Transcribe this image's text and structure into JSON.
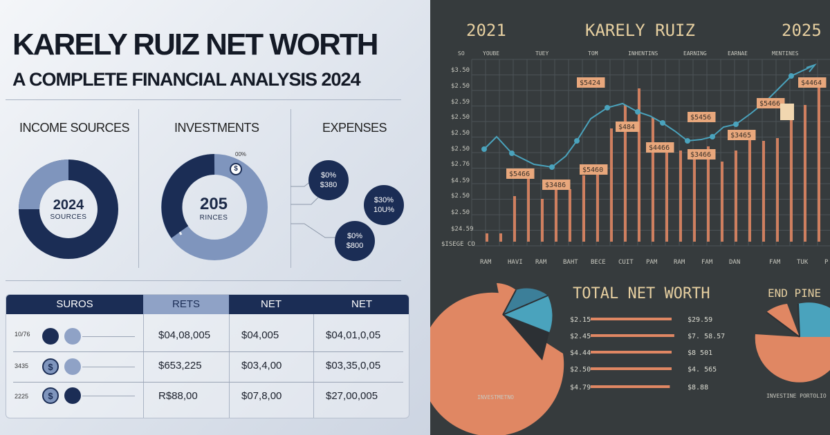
{
  "header": {
    "title": "KARELY RUIZ NET WORTH",
    "subtitle": "A COMPLETE FINANCIAL ANALYSIS 2024"
  },
  "sections": {
    "income": {
      "title": "INCOME SOURCES",
      "center_value": "2024",
      "center_label": "SOURCES"
    },
    "investments": {
      "title": "INVESTMENTS",
      "center_value": "205",
      "center_label": "RINCES",
      "pct_label": "00%",
      "badge_icon": "dollar-icon"
    },
    "expenses": {
      "title": "EXPENSES",
      "bubbles": [
        {
          "line1": "$0%",
          "line2": "$380"
        },
        {
          "line1": "$30%",
          "line2": "10U%"
        },
        {
          "line1": "$0%",
          "line2": "$800"
        }
      ]
    }
  },
  "table": {
    "headers": [
      "SUROS",
      "RETS",
      "NET",
      "NET"
    ],
    "rows": [
      {
        "label": "10/76",
        "icons": [
          "dark-dot",
          "light-dot"
        ],
        "cells": [
          "$04,08,005",
          "$04,005",
          "$04,01,0,05"
        ]
      },
      {
        "label": "3435",
        "icons": [
          "dollar-coin",
          "light-dot"
        ],
        "cells": [
          "$653,225",
          "$03,4,00",
          "$03,35,0,05"
        ]
      },
      {
        "label": "2225",
        "icons": [
          "dollar-coin",
          "dark-dot"
        ],
        "cells": [
          "R$88,00",
          "$07,8,00",
          "$27,00,005"
        ]
      }
    ]
  },
  "chalkboard": {
    "title_left": "2021",
    "title_center": "KARELY RUIZ",
    "title_right": "2025",
    "column_headers": [
      "SO",
      "YOUBE",
      "TUEY",
      "TOM",
      "INHENTINS",
      "EARNING",
      "EARNAE",
      "MENTINES"
    ],
    "y_labels": [
      "$3.50",
      "$2.50",
      "$2.59",
      "$2.50",
      "$2.50",
      "$2.50",
      "$2.76",
      "$4.59",
      "$2.50",
      "$2.50",
      "$24.59",
      "$ISEGE CO"
    ],
    "x_labels": [
      "RAM",
      "HAVI",
      "RAM",
      "BAHT",
      "BECE",
      "CUIT",
      "PAM",
      "RAM",
      "FAM",
      "DAN",
      "FAM",
      "TUK",
      "P"
    ],
    "callouts": [
      "$5424",
      "$5466",
      "$3486",
      "$5460",
      "$484",
      "$4466",
      "$5456",
      "$3466",
      "$3465",
      "$5466",
      "$4464"
    ],
    "net_worth_title": "TOTAL NET WORTH",
    "net_worth_rows": [
      {
        "left": "$2.15",
        "right": "$29.59",
        "fill": 0.9
      },
      {
        "left": "$2.45",
        "right": "$7. 58.57",
        "fill": 0.93
      },
      {
        "left": "$4.44",
        "right": "$8 501",
        "fill": 0.9
      },
      {
        "left": "$2.50",
        "right": "$4. 565",
        "fill": 0.9
      },
      {
        "left": "$4.79",
        "right": "$8.88",
        "fill": 0.88
      }
    ],
    "pie_left_label": "INVESTMETNO",
    "pie_right_title": "END PINE",
    "pie_right_label": "INVESTINE PORTOLIO"
  },
  "colors": {
    "navy": "#1b2d55",
    "slate": "#7f95bd",
    "chalk": "#e6cfa0",
    "orange": "#e08763",
    "teal": "#4aa3bd",
    "board": "#363b3d"
  }
}
